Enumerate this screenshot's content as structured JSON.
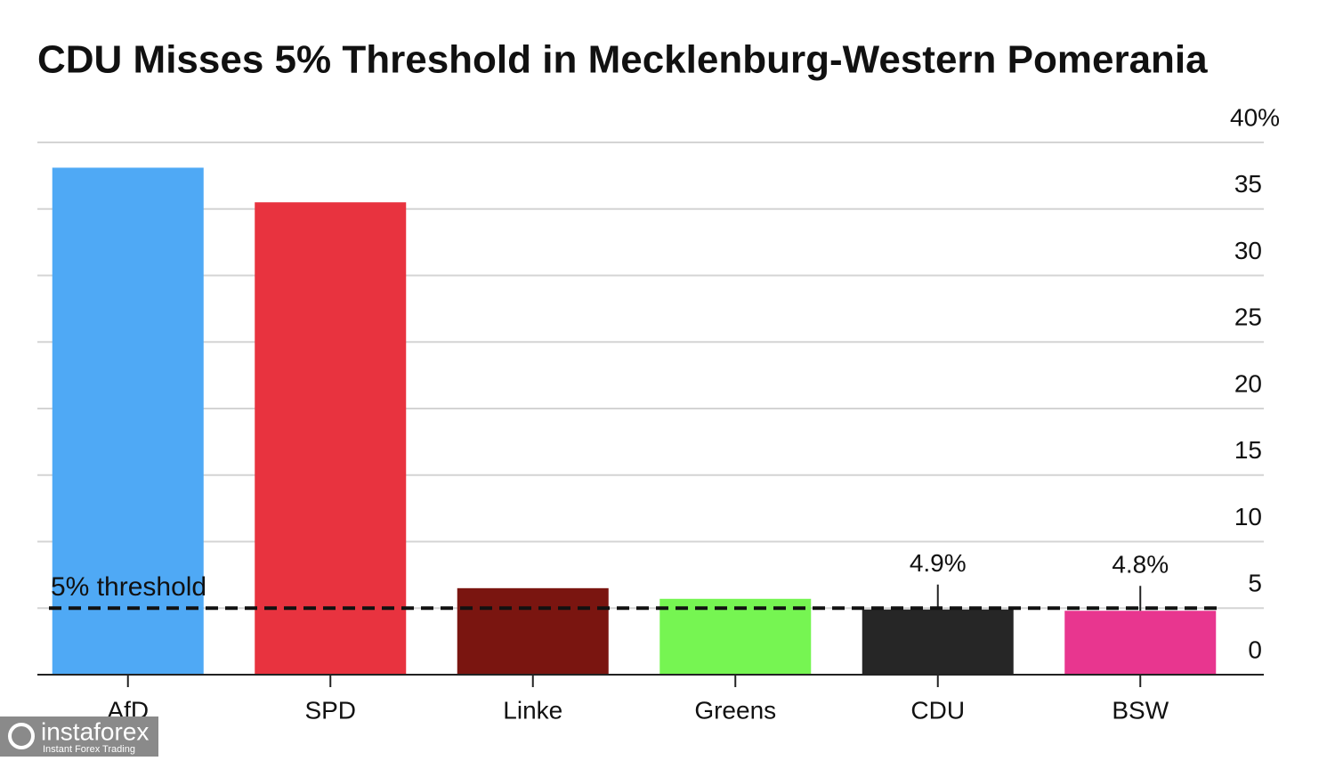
{
  "chart_data": {
    "type": "bar",
    "title": "CDU Misses 5% Threshold in Mecklenburg-Western Pomerania",
    "categories": [
      "AfD",
      "SPD",
      "Linke",
      "Greens",
      "CDU",
      "BSW"
    ],
    "values": [
      38.1,
      35.5,
      6.5,
      5.7,
      4.9,
      4.8
    ],
    "value_labels": [
      null,
      null,
      null,
      null,
      "4.9%",
      "4.8%"
    ],
    "colors": [
      "#4fa9f5",
      "#e8333f",
      "#7a1510",
      "#76f552",
      "#262626",
      "#e8368f"
    ],
    "ylim": [
      0,
      40
    ],
    "yticks": [
      0,
      5,
      10,
      15,
      20,
      25,
      30,
      35,
      {
        "value": 40,
        "label": "40%"
      }
    ],
    "grid": true,
    "y_axis_side": "right",
    "threshold": {
      "value": 5,
      "label": "5% threshold"
    }
  },
  "watermark": {
    "brand": "instaforex",
    "tagline": "Instant Forex Trading"
  }
}
